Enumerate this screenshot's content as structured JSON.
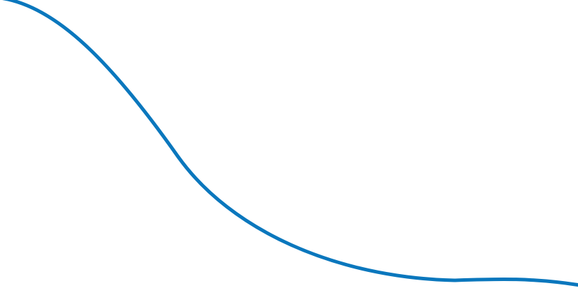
{
  "curve": {
    "color": "#0A77BD"
  }
}
